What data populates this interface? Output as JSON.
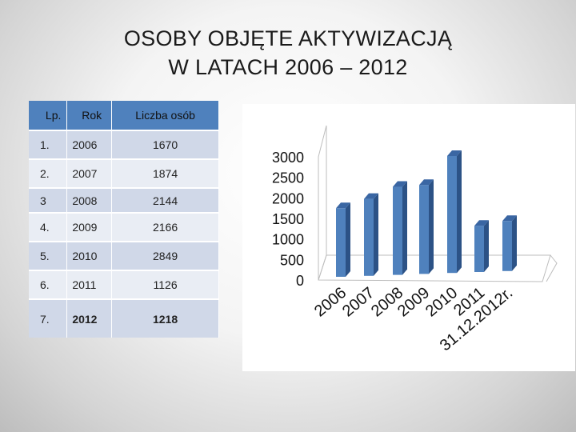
{
  "title": {
    "line1": "OSOBY OBJĘTE AKTYWIZACJĄ",
    "line2": "W LATACH 2006 – 2012"
  },
  "table": {
    "headers": [
      "Lp.",
      "Rok",
      "Liczba osób"
    ],
    "rows": [
      [
        "1.",
        "2006",
        "1670"
      ],
      [
        "2.",
        "2007",
        "1874"
      ],
      [
        "3",
        "2008",
        "2144"
      ],
      [
        "4.",
        "2009",
        "2166"
      ],
      [
        "5.",
        "2010",
        "2849"
      ],
      [
        "6.",
        "2011",
        "1126"
      ],
      [
        "7.",
        "2012",
        "1218"
      ]
    ]
  },
  "colors": {
    "bar": "#4f81bd",
    "header": "#4f81bd"
  },
  "chart_data": {
    "type": "bar",
    "categories": [
      "2006",
      "2007",
      "2008",
      "2009",
      "2010",
      "2011",
      "31.12.2012r."
    ],
    "values": [
      1670,
      1874,
      2144,
      2166,
      2849,
      1126,
      1218
    ],
    "ylim": [
      0,
      3000
    ],
    "yticks": [
      "0",
      "500",
      "1000",
      "1500",
      "2000",
      "2500",
      "3000"
    ],
    "title": "",
    "xlabel": "",
    "ylabel": "",
    "grid": false
  }
}
